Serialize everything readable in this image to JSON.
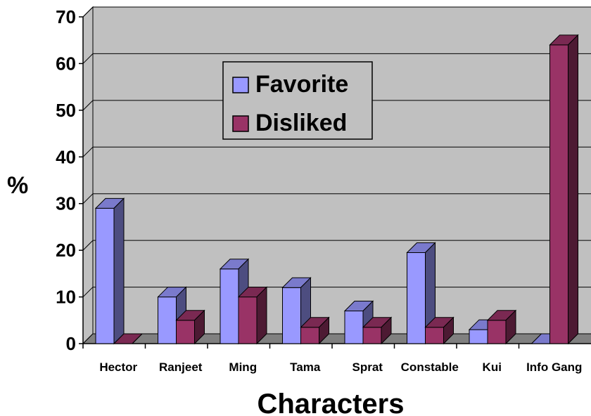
{
  "chart_data": {
    "type": "bar",
    "categories": [
      "Hector",
      "Ranjeet",
      "Ming",
      "Tama",
      "Sprat",
      "Constable",
      "Kui",
      "Info Gang"
    ],
    "series": [
      {
        "name": "Favorite",
        "color": "#9999ff",
        "values": [
          29,
          10,
          16,
          12,
          7,
          19.5,
          3,
          0
        ]
      },
      {
        "name": "Disliked",
        "color": "#993366",
        "values": [
          0,
          5,
          10,
          3.5,
          3.5,
          3.5,
          5,
          64
        ]
      }
    ],
    "ylim": [
      0,
      70
    ],
    "yticks": [
      0,
      10,
      20,
      30,
      40,
      50,
      60,
      70
    ],
    "ylabel": "%",
    "xlabel": "Characters",
    "grid": true,
    "legend_position": "top-center",
    "style": "3d-clustered-bar",
    "wall_color": "#c0c0c0",
    "floor_color": "#808080"
  }
}
